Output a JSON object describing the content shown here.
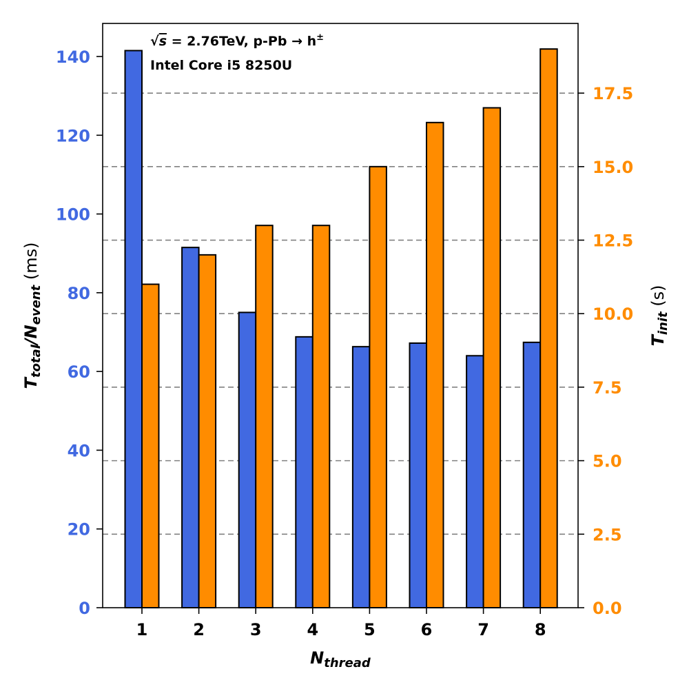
{
  "chart_data": {
    "type": "bar",
    "categories": [
      "1",
      "2",
      "3",
      "4",
      "5",
      "6",
      "7",
      "8"
    ],
    "series": [
      {
        "name": "T_total/N_event",
        "axis": "left",
        "unit": "ms",
        "color": "#4169e1",
        "values": [
          141.5,
          91.5,
          75.0,
          68.8,
          66.3,
          67.2,
          64.0,
          67.4
        ]
      },
      {
        "name": "T_init",
        "axis": "right",
        "unit": "s",
        "color": "#ff8c00",
        "values": [
          11.0,
          12.0,
          13.0,
          13.0,
          15.0,
          16.5,
          17.0,
          19.0
        ]
      }
    ],
    "xlabel": {
      "main": "N",
      "sub": "thread"
    },
    "ylabel_left": {
      "p1": "T",
      "s1": "total",
      "p2": "/N",
      "s2": "event",
      "unit": " (ms)"
    },
    "ylabel_right": {
      "p1": "T",
      "s1": "init",
      "unit": " (s)"
    },
    "ylim_left": [
      0,
      148.4
    ],
    "ylim_right": [
      0,
      19.87
    ],
    "yticks_left": [
      "0",
      "20",
      "40",
      "60",
      "80",
      "100",
      "120",
      "140"
    ],
    "yticks_right": [
      "0.0",
      "2.5",
      "5.0",
      "7.5",
      "10.0",
      "12.5",
      "15.0",
      "17.5"
    ],
    "grid": "horizontal dashed at right-axis ticks",
    "annotations": {
      "line1_sqrt": "√",
      "line1_s": "s",
      "line1_rest": " = 2.76TeV, p-Pb → h",
      "line1_sup": "±",
      "line2": "Intel Core i5 8250U"
    },
    "colors": {
      "left_axis": "#4169e1",
      "right_axis": "#ff8c00",
      "grid": "#808080"
    }
  }
}
